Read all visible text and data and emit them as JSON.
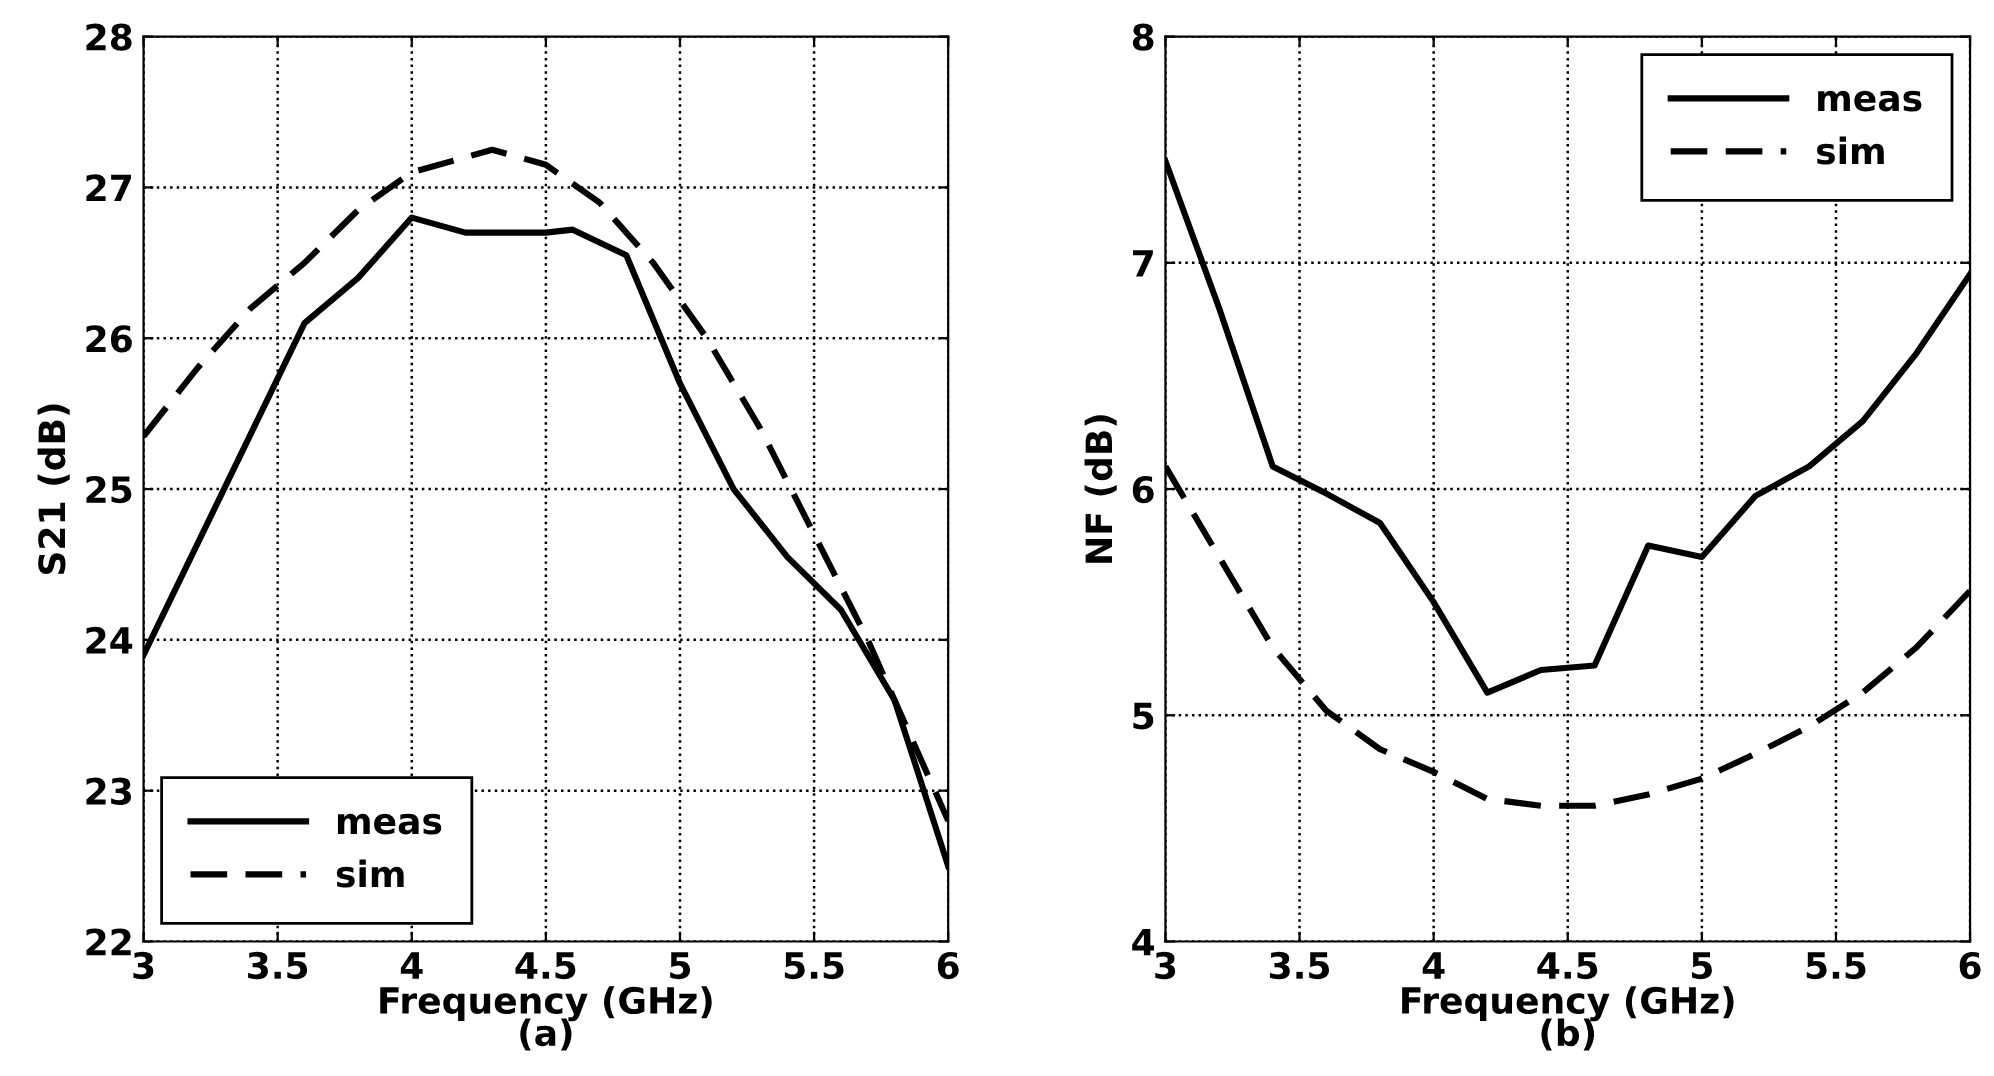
{
  "chart_data": [
    {
      "type": "line",
      "xlabel": "Frequency (GHz)",
      "ylabel": "S21 (dB)",
      "annotations": [
        "(a)"
      ],
      "xlim": [
        3,
        6
      ],
      "ylim": [
        22,
        28
      ],
      "xticks": [
        3,
        3.5,
        4,
        4.5,
        5,
        5.5,
        6
      ],
      "yticks": [
        22,
        23,
        24,
        25,
        26,
        27,
        28
      ],
      "grid": true,
      "legend": "bottom left",
      "series": [
        {
          "name": "meas",
          "color": "#000000",
          "line_style": "solid",
          "x": [
            3,
            3.6,
            3.8,
            4.0,
            4.2,
            4.5,
            4.6,
            4.8,
            5.0,
            5.2,
            5.4,
            5.6,
            5.8,
            6.0
          ],
          "values": [
            23.9,
            26.1,
            26.4,
            26.8,
            26.7,
            26.7,
            26.72,
            26.55,
            25.7,
            25.0,
            24.55,
            24.2,
            23.6,
            22.5
          ]
        },
        {
          "name": "sim",
          "color": "#000000",
          "line_style": "dashed",
          "x": [
            3,
            3.2,
            3.4,
            3.6,
            3.8,
            4.0,
            4.2,
            4.3,
            4.5,
            4.7,
            4.9,
            5.1,
            5.3,
            5.5,
            5.7,
            5.9,
            6.0
          ],
          "values": [
            25.35,
            25.8,
            26.2,
            26.5,
            26.85,
            27.1,
            27.2,
            27.25,
            27.15,
            26.9,
            26.5,
            26.0,
            25.4,
            24.7,
            24.0,
            23.2,
            22.8
          ]
        }
      ]
    },
    {
      "type": "line",
      "xlabel": "Frequency (GHz)",
      "ylabel": "NF (dB)",
      "annotations": [
        "(b)"
      ],
      "xlim": [
        3,
        6
      ],
      "ylim": [
        4,
        8
      ],
      "xticks": [
        3,
        3.5,
        4,
        4.5,
        5,
        5.5,
        6
      ],
      "yticks": [
        4,
        5,
        6,
        7,
        8
      ],
      "grid": true,
      "legend": "top right",
      "series": [
        {
          "name": "meas",
          "color": "#000000",
          "line_style": "solid",
          "x": [
            3,
            3.2,
            3.4,
            3.6,
            3.8,
            4.0,
            4.2,
            4.4,
            4.6,
            4.8,
            5.0,
            5.2,
            5.4,
            5.6,
            5.8,
            6.0
          ],
          "values": [
            7.45,
            6.8,
            6.1,
            5.98,
            5.85,
            5.5,
            5.1,
            5.2,
            5.22,
            5.75,
            5.7,
            5.97,
            6.1,
            6.3,
            6.6,
            6.95
          ]
        },
        {
          "name": "sim",
          "color": "#000000",
          "line_style": "dashed",
          "x": [
            3,
            3.2,
            3.4,
            3.6,
            3.8,
            4.0,
            4.2,
            4.4,
            4.6,
            4.8,
            5.0,
            5.2,
            5.4,
            5.6,
            5.8,
            6.0
          ],
          "values": [
            6.1,
            5.7,
            5.3,
            5.02,
            4.85,
            4.75,
            4.63,
            4.6,
            4.6,
            4.65,
            4.72,
            4.83,
            4.95,
            5.1,
            5.3,
            5.55
          ]
        }
      ]
    }
  ]
}
